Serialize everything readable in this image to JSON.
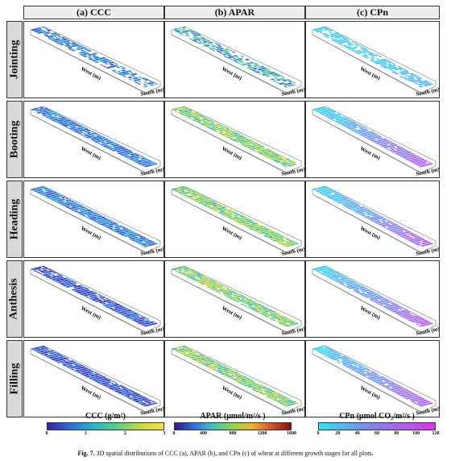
{
  "columns": [
    "(a) CCC",
    "(b) APAR",
    "(c) CPn"
  ],
  "stages": [
    "Jointing",
    "Booting",
    "Heading",
    "Anthesis",
    "Filling"
  ],
  "axis_labels": {
    "west": "West (m)",
    "south": "South (m)"
  },
  "colorbars": [
    {
      "title": "CCC (g/m²)",
      "ticks": [
        "0",
        "1",
        "2",
        "3"
      ],
      "colors": [
        "#3b1fa8",
        "#2f6fe0",
        "#27b6c9",
        "#53d08a",
        "#c3dd3a",
        "#f6e23a"
      ]
    },
    {
      "title": "APAR (μmol/m²/s )",
      "ticks": [
        "0",
        "400",
        "800",
        "1200",
        "1600"
      ],
      "colors": [
        "#2a1a8c",
        "#2f6fe0",
        "#3fc4c0",
        "#8fd84a",
        "#f0b52a",
        "#d8502a",
        "#8a1010"
      ]
    },
    {
      "title": "CPn (μmol CO₂/m²/s )",
      "ticks": [
        "0",
        "20",
        "40",
        "60",
        "80",
        "100",
        "120"
      ],
      "colors": [
        "#2ee8f0",
        "#5aaef0",
        "#8a7ef0",
        "#b45af0",
        "#e030f0"
      ]
    }
  ],
  "panel_colors": {
    "ccc": [
      "#3a2fb0",
      "#3553d8",
      "#2f7fe3",
      "#2aa6cf",
      "#3cc0a0",
      "#8fd160"
    ],
    "apar": [
      "#3a66d8",
      "#3aaec8",
      "#56cc88",
      "#9cd84a",
      "#d9c93a",
      "#f0a02a"
    ],
    "cpn": [
      "#28e0f0",
      "#4ac8f2",
      "#68a4f2",
      "#8a86f0",
      "#a86ef0",
      "#c852f0"
    ]
  },
  "caption": {
    "label": "Fig. 7.",
    "text": "3D spatial distributions of CCC (a), APAR (b), and CPn (c) of wheat at different growth stages for all plots."
  }
}
